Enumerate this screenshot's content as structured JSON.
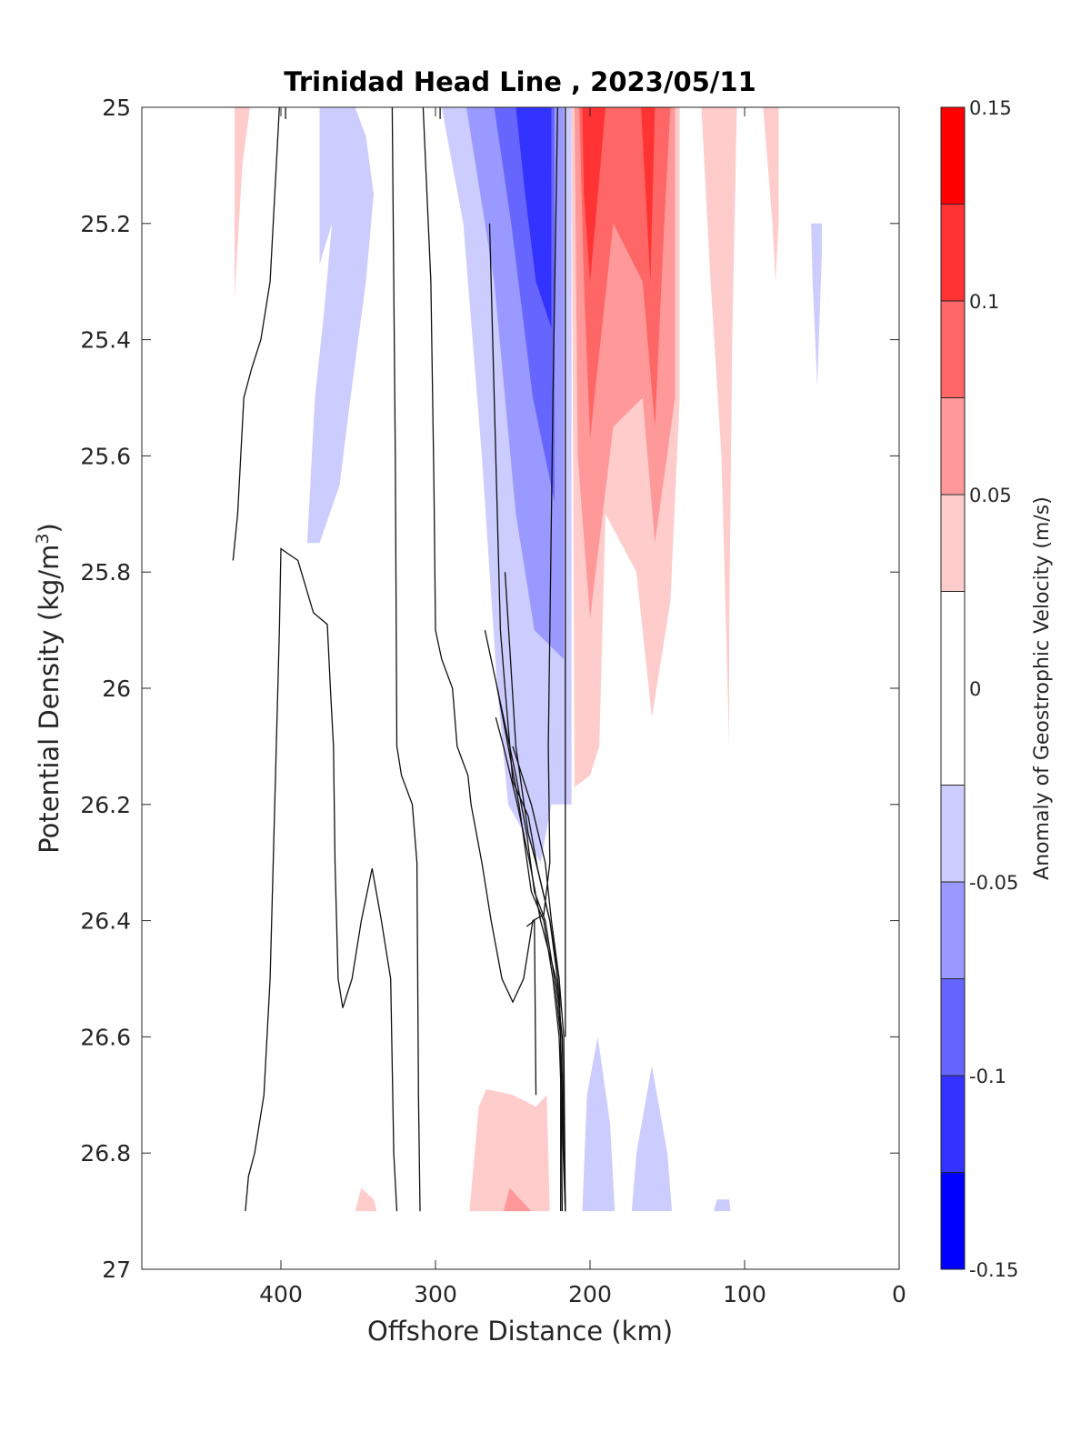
{
  "chart_data": {
    "type": "contour",
    "title": "Trinidad Head Line , 2023/05/11",
    "xlabel": "Offshore Distance (km)",
    "ylabel_main": "Potential Density (kg/m",
    "ylabel_sup": "3",
    "ylabel_close": ")",
    "x_axis": {
      "min": 0,
      "max": 490,
      "reversed": true,
      "ticks": [
        400,
        300,
        200,
        100,
        0
      ],
      "tick_labels": [
        "400",
        "300",
        "200",
        "100",
        "0"
      ]
    },
    "y_axis": {
      "min": 25,
      "max": 27,
      "reversed": true,
      "ticks": [
        25,
        25.2,
        25.4,
        25.6,
        25.8,
        26,
        26.2,
        26.4,
        26.6,
        26.8,
        27
      ],
      "tick_labels": [
        "25",
        "25.2",
        "25.4",
        "25.6",
        "25.8",
        "26",
        "26.2",
        "26.4",
        "26.6",
        "26.8",
        "27"
      ]
    },
    "colorbar": {
      "label": "Anomaly of Geostrophic Velocity (m/s)",
      "min": -0.15,
      "max": 0.15,
      "levels": [
        -0.15,
        -0.125,
        -0.1,
        -0.075,
        -0.05,
        -0.025,
        0.025,
        0.05,
        0.075,
        0.1,
        0.125,
        0.15
      ],
      "colors": [
        "#0000ff",
        "#3333ff",
        "#6666ff",
        "#9999ff",
        "#ccccff",
        "#ffffff",
        "#ffcccc",
        "#ff9999",
        "#ff6666",
        "#ff3333",
        "#ff0000"
      ],
      "ticks": [
        0.15,
        0.1,
        0.05,
        0,
        -0.05,
        -0.1,
        -0.15
      ],
      "tick_labels": [
        "0.15",
        "0.1",
        "0.05",
        "0",
        "-0.05",
        "-0.1",
        "-0.15"
      ]
    },
    "filled_regions": [
      {
        "level": 0.05,
        "color": "#ffcccc",
        "points": [
          [
            430,
            25.0
          ],
          [
            420,
            25.0
          ],
          [
            425,
            25.1
          ],
          [
            430,
            25.33
          ]
        ]
      },
      {
        "level": -0.05,
        "color": "#ccccff",
        "points": [
          [
            405,
            25.0
          ],
          [
            352,
            25.0
          ],
          [
            345,
            25.05
          ],
          [
            340,
            25.15
          ],
          [
            345,
            25.3
          ],
          [
            355,
            25.5
          ],
          [
            362,
            25.65
          ],
          [
            375,
            25.75
          ],
          [
            383,
            25.75
          ],
          [
            378,
            25.5
          ],
          [
            372,
            25.35
          ],
          [
            367,
            25.2
          ],
          [
            375,
            25.27
          ],
          [
            375,
            25.0
          ]
        ]
      },
      {
        "level": -0.05,
        "color": "#ccccff",
        "points": [
          [
            296,
            25.0
          ],
          [
            212,
            25.0
          ],
          [
            212,
            26.2
          ],
          [
            225,
            26.2
          ],
          [
            232,
            26.3
          ],
          [
            253,
            26.2
          ],
          [
            260,
            26.0
          ],
          [
            270,
            25.6
          ],
          [
            282,
            25.2
          ]
        ]
      },
      {
        "level": -0.075,
        "color": "#9999ff",
        "points": [
          [
            280,
            25.0
          ],
          [
            217,
            25.0
          ],
          [
            217,
            25.95
          ],
          [
            236,
            25.9
          ],
          [
            248,
            25.7
          ],
          [
            262,
            25.3
          ]
        ]
      },
      {
        "level": -0.1,
        "color": "#6666ff",
        "points": [
          [
            262,
            25.0
          ],
          [
            223,
            25.0
          ],
          [
            223,
            25.68
          ],
          [
            237,
            25.5
          ],
          [
            251,
            25.2
          ]
        ]
      },
      {
        "level": -0.125,
        "color": "#3333ff",
        "points": [
          [
            248,
            25.0
          ],
          [
            225,
            25.0
          ],
          [
            225,
            25.38
          ],
          [
            235,
            25.3
          ],
          [
            242,
            25.15
          ]
        ]
      },
      {
        "level": 0.05,
        "color": "#ffcccc",
        "points": [
          [
            212,
            25.0
          ],
          [
            142,
            25.0
          ],
          [
            142,
            25.5
          ],
          [
            148,
            25.85
          ],
          [
            160,
            26.05
          ],
          [
            170,
            25.8
          ],
          [
            190,
            25.7
          ],
          [
            194,
            26.1
          ],
          [
            200,
            26.15
          ],
          [
            210,
            26.17
          ]
        ]
      },
      {
        "level": 0.075,
        "color": "#ff9999",
        "points": [
          [
            210,
            25.0
          ],
          [
            145,
            25.0
          ],
          [
            145,
            25.5
          ],
          [
            158,
            25.75
          ],
          [
            166,
            25.5
          ],
          [
            185,
            25.55
          ],
          [
            200,
            25.88
          ],
          [
            208,
            25.6
          ]
        ]
      },
      {
        "level": 0.1,
        "color": "#ff6666",
        "points": [
          [
            207,
            25.0
          ],
          [
            148,
            25.0
          ],
          [
            152,
            25.2
          ],
          [
            158,
            25.55
          ],
          [
            166,
            25.3
          ],
          [
            185,
            25.2
          ],
          [
            200,
            25.57
          ],
          [
            204,
            25.3
          ]
        ]
      },
      {
        "level": 0.125,
        "color": "#ff3333",
        "points": [
          [
            205,
            25.0
          ],
          [
            190,
            25.0
          ],
          [
            200,
            25.3
          ],
          [
            204,
            25.15
          ]
        ]
      },
      {
        "level": 0.125,
        "color": "#ff3333",
        "points": [
          [
            167,
            25.0
          ],
          [
            158,
            25.0
          ],
          [
            161,
            25.3
          ],
          [
            164,
            25.15
          ]
        ]
      },
      {
        "level": 0.05,
        "color": "#ffcccc",
        "points": [
          [
            128,
            25.0
          ],
          [
            105,
            25.0
          ],
          [
            108,
            25.4
          ],
          [
            110,
            25.9
          ],
          [
            110,
            26.1
          ],
          [
            115,
            25.6
          ],
          [
            122,
            25.3
          ]
        ]
      },
      {
        "level": 0.05,
        "color": "#ffcccc",
        "points": [
          [
            88,
            25.0
          ],
          [
            78,
            25.0
          ],
          [
            78,
            25.2
          ],
          [
            80,
            25.3
          ],
          [
            82,
            25.2
          ]
        ]
      },
      {
        "level": -0.05,
        "color": "#ccccff",
        "points": [
          [
            57,
            25.2
          ],
          [
            50,
            25.2
          ],
          [
            50,
            25.25
          ],
          [
            53,
            25.48
          ],
          [
            56,
            25.3
          ]
        ]
      },
      {
        "level": 0.05,
        "color": "#ffcccc",
        "points": [
          [
            278,
            26.9
          ],
          [
            226,
            26.9
          ],
          [
            228,
            26.7
          ],
          [
            235,
            26.72
          ],
          [
            250,
            26.7
          ],
          [
            267,
            26.69
          ],
          [
            272,
            26.72
          ]
        ]
      },
      {
        "level": 0.075,
        "color": "#ff9999",
        "points": [
          [
            256,
            26.9
          ],
          [
            238,
            26.9
          ],
          [
            245,
            26.88
          ],
          [
            252,
            26.86
          ]
        ]
      },
      {
        "level": 0.05,
        "color": "#ffcccc",
        "points": [
          [
            352,
            26.9
          ],
          [
            338,
            26.9
          ],
          [
            340,
            26.88
          ],
          [
            348,
            26.86
          ]
        ]
      },
      {
        "level": -0.05,
        "color": "#ccccff",
        "points": [
          [
            205,
            26.9
          ],
          [
            184,
            26.9
          ],
          [
            187,
            26.75
          ],
          [
            195,
            26.6
          ],
          [
            202,
            26.7
          ]
        ]
      },
      {
        "level": -0.05,
        "color": "#ccccff",
        "points": [
          [
            173,
            26.9
          ],
          [
            147,
            26.9
          ],
          [
            150,
            26.8
          ],
          [
            160,
            26.65
          ],
          [
            170,
            26.8
          ]
        ]
      },
      {
        "level": -0.05,
        "color": "#ccccff",
        "points": [
          [
            120,
            26.9
          ],
          [
            109,
            26.9
          ],
          [
            110,
            26.88
          ],
          [
            118,
            26.88
          ]
        ]
      }
    ],
    "zero_contours": [
      [
        [
          431,
          25.78
        ],
        [
          428,
          25.7
        ],
        [
          424,
          25.5
        ],
        [
          419,
          25.45
        ],
        [
          413,
          25.4
        ],
        [
          407,
          25.3
        ],
        [
          403,
          25.1
        ],
        [
          401,
          25.0
        ]
      ],
      [
        [
          397,
          25.0
        ],
        [
          397,
          25.02
        ]
      ],
      [
        [
          423,
          26.9
        ],
        [
          421,
          26.84
        ],
        [
          417,
          26.8
        ],
        [
          411,
          26.7
        ],
        [
          407,
          26.5
        ],
        [
          406,
          26.4
        ],
        [
          401,
          25.9
        ],
        [
          400,
          25.76
        ],
        [
          389,
          25.78
        ],
        [
          379,
          25.87
        ],
        [
          370,
          25.89
        ],
        [
          368,
          26.0
        ],
        [
          366,
          26.1
        ],
        [
          365,
          26.3
        ],
        [
          363,
          26.5
        ],
        [
          360,
          26.55
        ],
        [
          354,
          26.5
        ],
        [
          348,
          26.4
        ],
        [
          341,
          26.31
        ],
        [
          335,
          26.4
        ],
        [
          329,
          26.5
        ],
        [
          327,
          26.8
        ],
        [
          325,
          26.9
        ]
      ],
      [
        [
          328,
          25.0
        ],
        [
          327,
          25.3
        ],
        [
          326,
          25.6
        ],
        [
          325,
          26.1
        ],
        [
          322,
          26.15
        ],
        [
          315,
          26.2
        ],
        [
          312,
          26.3
        ],
        [
          311,
          26.7
        ],
        [
          310,
          26.9
        ]
      ],
      [
        [
          308,
          25.0
        ],
        [
          303,
          25.3
        ],
        [
          301,
          25.65
        ],
        [
          300,
          25.9
        ],
        [
          296,
          25.95
        ],
        [
          289,
          26.0
        ],
        [
          286,
          26.1
        ],
        [
          279,
          26.15
        ],
        [
          277,
          26.2
        ],
        [
          270,
          26.3
        ],
        [
          264,
          26.4
        ],
        [
          257,
          26.5
        ],
        [
          250,
          26.54
        ],
        [
          243,
          26.5
        ],
        [
          237,
          26.4
        ],
        [
          230,
          26.39
        ],
        [
          226,
          26.3
        ],
        [
          227,
          26.1
        ],
        [
          224,
          25.5
        ],
        [
          221,
          25.0
        ]
      ],
      [
        [
          297,
          25.0
        ],
        [
          297,
          25.02
        ]
      ],
      [
        [
          216,
          26.9
        ],
        [
          217,
          26.6
        ],
        [
          220,
          26.5
        ],
        [
          226,
          26.4
        ],
        [
          234,
          26.31
        ],
        [
          240,
          26.22
        ],
        [
          250,
          26.16
        ],
        [
          255,
          26.0
        ],
        [
          258,
          25.9
        ],
        [
          262,
          25.5
        ],
        [
          265,
          25.2
        ]
      ],
      [
        [
          241,
          26.41
        ],
        [
          236,
          26.4
        ],
        [
          235,
          26.7
        ]
      ],
      [
        [
          218,
          26.9
        ],
        [
          219,
          26.6
        ],
        [
          221,
          26.5
        ],
        [
          226,
          26.4
        ],
        [
          235,
          26.3
        ],
        [
          240,
          26.25
        ],
        [
          248,
          26.1
        ],
        [
          255,
          25.8
        ]
      ],
      [
        [
          216,
          26.9
        ],
        [
          218,
          26.6
        ],
        [
          222,
          26.5
        ],
        [
          232,
          26.4
        ],
        [
          239,
          26.3
        ],
        [
          247,
          26.2
        ],
        [
          256,
          26.1
        ],
        [
          261,
          26.05
        ]
      ],
      [
        [
          216,
          25.0
        ],
        [
          216,
          26.6
        ]
      ],
      [
        [
          216,
          26.9
        ],
        [
          220,
          26.6
        ],
        [
          224,
          26.5
        ],
        [
          230,
          26.4
        ],
        [
          238,
          26.35
        ],
        [
          246,
          26.2
        ],
        [
          260,
          26.0
        ]
      ],
      [
        [
          219,
          26.9
        ],
        [
          219,
          26.6
        ],
        [
          223,
          26.5
        ],
        [
          229,
          26.4
        ],
        [
          236,
          26.35
        ],
        [
          241,
          26.25
        ],
        [
          248,
          26.15
        ],
        [
          268,
          25.9
        ]
      ],
      [
        [
          216,
          26.9
        ],
        [
          219,
          26.6
        ],
        [
          220,
          26.5
        ],
        [
          225,
          26.4
        ],
        [
          229,
          26.3
        ],
        [
          238,
          26.2
        ],
        [
          250,
          26.1
        ]
      ]
    ]
  }
}
